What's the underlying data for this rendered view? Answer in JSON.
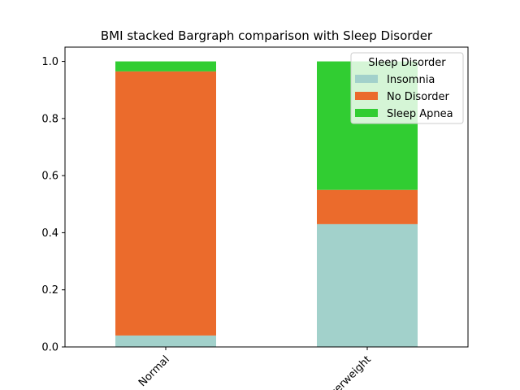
{
  "chart_data": {
    "type": "bar",
    "stacked": true,
    "title": "BMI stacked Bargraph comparison with Sleep Disorder",
    "xlabel": "",
    "ylabel": "",
    "ylim": [
      0,
      1.05
    ],
    "yticks": [
      "0.0",
      "0.2",
      "0.4",
      "0.6",
      "0.8",
      "1.0"
    ],
    "ytick_values": [
      0,
      0.2,
      0.4,
      0.6,
      0.8,
      1.0
    ],
    "categories": [
      "Normal",
      "Overweight"
    ],
    "series": [
      {
        "name": "Insomnia",
        "color": "#a2d1cb",
        "values": [
          0.04,
          0.43
        ]
      },
      {
        "name": "No Disorder",
        "color": "#eb6b2c",
        "values": [
          0.925,
          0.12
        ]
      },
      {
        "name": "Sleep Apnea",
        "color": "#31cd32",
        "values": [
          0.035,
          0.45
        ]
      }
    ],
    "legend": {
      "title": "Sleep Disorder",
      "location": "top-right"
    }
  }
}
